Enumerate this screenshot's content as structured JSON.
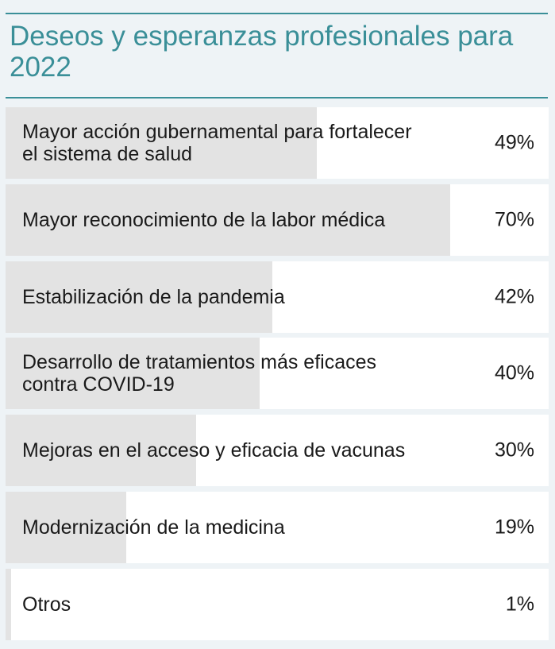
{
  "header": {
    "title": "Deseos y esperanzas profesionales para 2022"
  },
  "chart_data": {
    "type": "bar",
    "orientation": "horizontal",
    "title": "Deseos y esperanzas profesionales para 2022",
    "categories": [
      "Mayor acción gubernamental para fortalecer el sistema de salud",
      "Mayor reconocimiento de la labor médica",
      "Estabilización de la pandemia",
      "Desarrollo de tratamientos más eficaces contra COVID-19",
      "Mejoras en el acceso y eficacia de vacunas",
      "Modernización de la medicina",
      "Otros"
    ],
    "values": [
      49,
      70,
      42,
      40,
      30,
      19,
      1
    ],
    "value_labels": [
      "49%",
      "70%",
      "42%",
      "40%",
      "30%",
      "19%",
      "1%"
    ],
    "xlim": [
      0,
      100
    ],
    "unit": "%",
    "colors": {
      "title": "#3a8f98",
      "bar": "#e3e3e3",
      "row_background": "#ffffff",
      "page_background": "#eef3f6"
    }
  }
}
